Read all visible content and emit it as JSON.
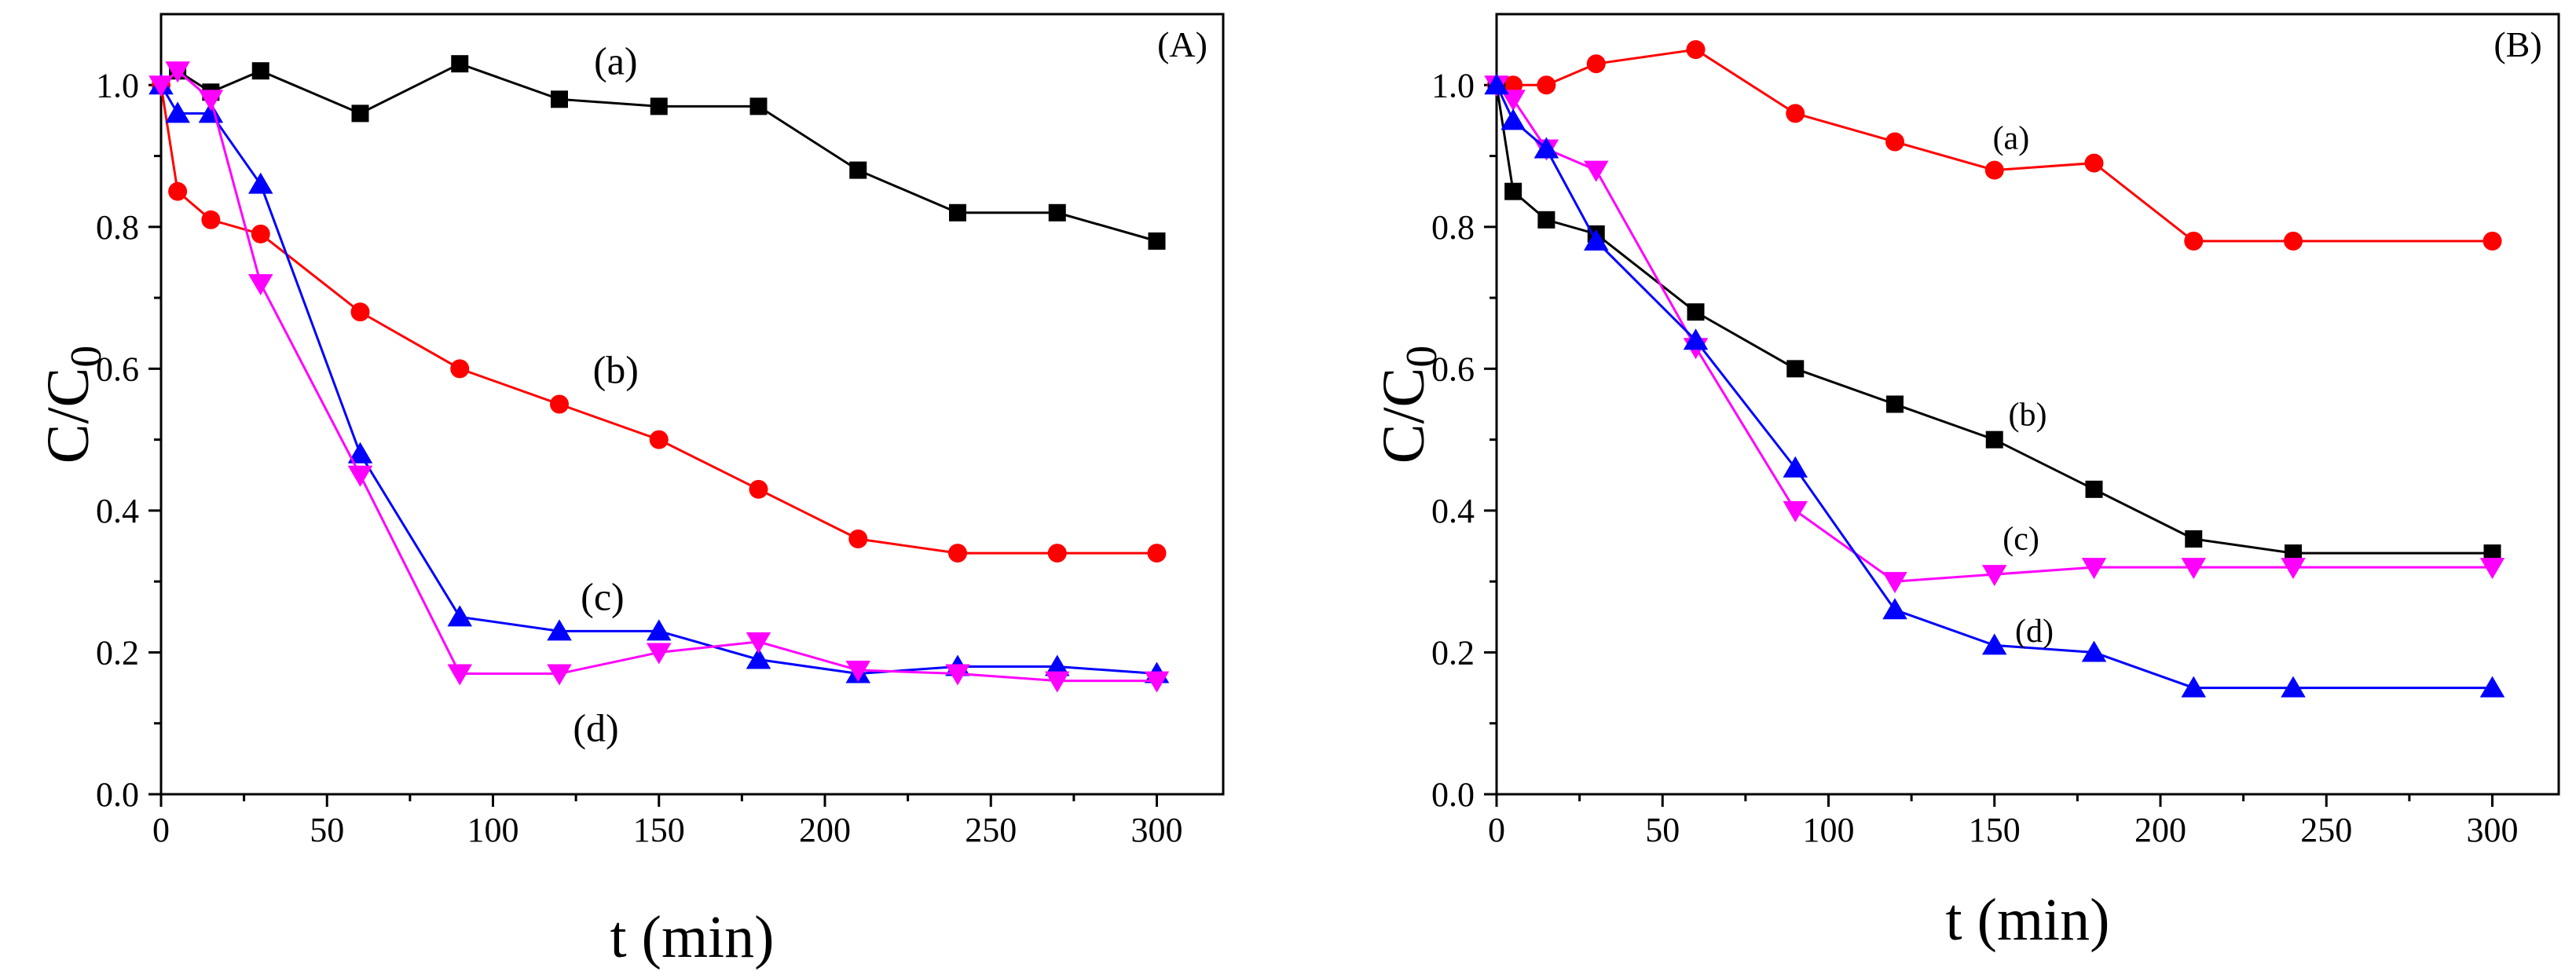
{
  "chart_data": [
    {
      "type": "line",
      "panel_label": "(A)",
      "xlabel": "t (min)",
      "ylabel_main": "C/C",
      "ylabel_sub": "0",
      "xlim": [
        0,
        320
      ],
      "ylim": [
        0.0,
        1.1
      ],
      "xticks": [
        0,
        50,
        100,
        150,
        200,
        250,
        300
      ],
      "xtick_labels": [
        "0",
        "50",
        "100",
        "150",
        "200",
        "250",
        "300"
      ],
      "yticks": [
        0.0,
        0.2,
        0.4,
        0.6,
        0.8,
        1.0
      ],
      "ytick_labels": [
        "0.0",
        "0.2",
        "0.4",
        "0.6",
        "0.8",
        "1.0"
      ],
      "series": [
        {
          "name": "(a)",
          "color": "#000000",
          "marker": "square",
          "x": [
            0,
            5,
            15,
            30,
            60,
            90,
            120,
            150,
            180,
            210,
            240,
            270,
            300
          ],
          "y": [
            1.0,
            1.02,
            0.99,
            1.02,
            0.96,
            1.03,
            0.98,
            0.97,
            0.97,
            0.88,
            0.82,
            0.82,
            0.78
          ],
          "label_at": [
            137,
            1.015
          ]
        },
        {
          "name": "(b)",
          "color": "#ff0000",
          "marker": "circle",
          "x": [
            0,
            5,
            15,
            30,
            60,
            90,
            120,
            150,
            180,
            210,
            240,
            270,
            300
          ],
          "y": [
            1.0,
            0.85,
            0.81,
            0.79,
            0.68,
            0.6,
            0.55,
            0.5,
            0.43,
            0.36,
            0.34,
            0.34,
            0.34
          ],
          "label_at": [
            137,
            0.58
          ]
        },
        {
          "name": "(c)",
          "color": "#0000ff",
          "marker": "triangle-up",
          "x": [
            0,
            5,
            15,
            30,
            60,
            90,
            120,
            150,
            180,
            210,
            240,
            270,
            300
          ],
          "y": [
            1.0,
            0.96,
            0.96,
            0.86,
            0.48,
            0.25,
            0.23,
            0.23,
            0.19,
            0.17,
            0.18,
            0.18,
            0.17
          ],
          "label_at": [
            133,
            0.26
          ]
        },
        {
          "name": "(d)",
          "color": "#ff00ff",
          "marker": "triangle-down",
          "x": [
            0,
            5,
            15,
            30,
            60,
            90,
            120,
            150,
            180,
            210,
            240,
            270,
            300
          ],
          "y": [
            1.0,
            1.02,
            0.98,
            0.72,
            0.45,
            0.17,
            0.17,
            0.2,
            0.215,
            0.175,
            0.17,
            0.16,
            0.16
          ],
          "label_at": [
            131,
            0.075
          ]
        }
      ]
    },
    {
      "type": "line",
      "panel_label": "(B)",
      "xlabel": "t (min)",
      "ylabel_main": "C/C",
      "ylabel_sub": "0",
      "xlim": [
        0,
        320
      ],
      "ylim": [
        0.0,
        1.1
      ],
      "xticks": [
        0,
        50,
        100,
        150,
        200,
        250,
        300
      ],
      "xtick_labels": [
        "0",
        "50",
        "100",
        "150",
        "200",
        "250",
        "300"
      ],
      "yticks": [
        0.0,
        0.2,
        0.4,
        0.6,
        0.8,
        1.0
      ],
      "ytick_labels": [
        "0.0",
        "0.2",
        "0.4",
        "0.6",
        "0.8",
        "1.0"
      ],
      "series": [
        {
          "name": "(a)",
          "color": "#ff0000",
          "marker": "circle",
          "x": [
            0,
            5,
            15,
            30,
            60,
            90,
            120,
            150,
            180,
            210,
            240,
            300
          ],
          "y": [
            1.0,
            1.0,
            1.0,
            1.03,
            1.05,
            0.96,
            0.92,
            0.88,
            0.89,
            0.78,
            0.78,
            0.78
          ],
          "label_at": [
            155,
            0.91
          ]
        },
        {
          "name": "(b)",
          "color": "#000000",
          "marker": "square",
          "x": [
            0,
            5,
            15,
            30,
            60,
            90,
            120,
            150,
            180,
            210,
            240,
            300
          ],
          "y": [
            1.0,
            0.85,
            0.81,
            0.79,
            0.68,
            0.6,
            0.55,
            0.5,
            0.43,
            0.36,
            0.34,
            0.34
          ],
          "label_at": [
            160,
            0.52
          ]
        },
        {
          "name": "(c)",
          "color": "#ff00ff",
          "marker": "triangle-down",
          "x": [
            0,
            5,
            15,
            30,
            60,
            90,
            120,
            150,
            180,
            210,
            240,
            300
          ],
          "y": [
            1.0,
            0.98,
            0.91,
            0.88,
            0.63,
            0.4,
            0.3,
            0.31,
            0.32,
            0.32,
            0.32,
            0.32
          ],
          "label_at": [
            158,
            0.345
          ]
        },
        {
          "name": "(d)",
          "color": "#0000ff",
          "marker": "triangle-up",
          "x": [
            0,
            5,
            15,
            30,
            60,
            90,
            120,
            150,
            180,
            210,
            240,
            300
          ],
          "y": [
            1.0,
            0.95,
            0.91,
            0.78,
            0.64,
            0.46,
            0.26,
            0.21,
            0.2,
            0.15,
            0.15,
            0.15
          ],
          "label_at": [
            162,
            0.215
          ]
        }
      ]
    }
  ]
}
